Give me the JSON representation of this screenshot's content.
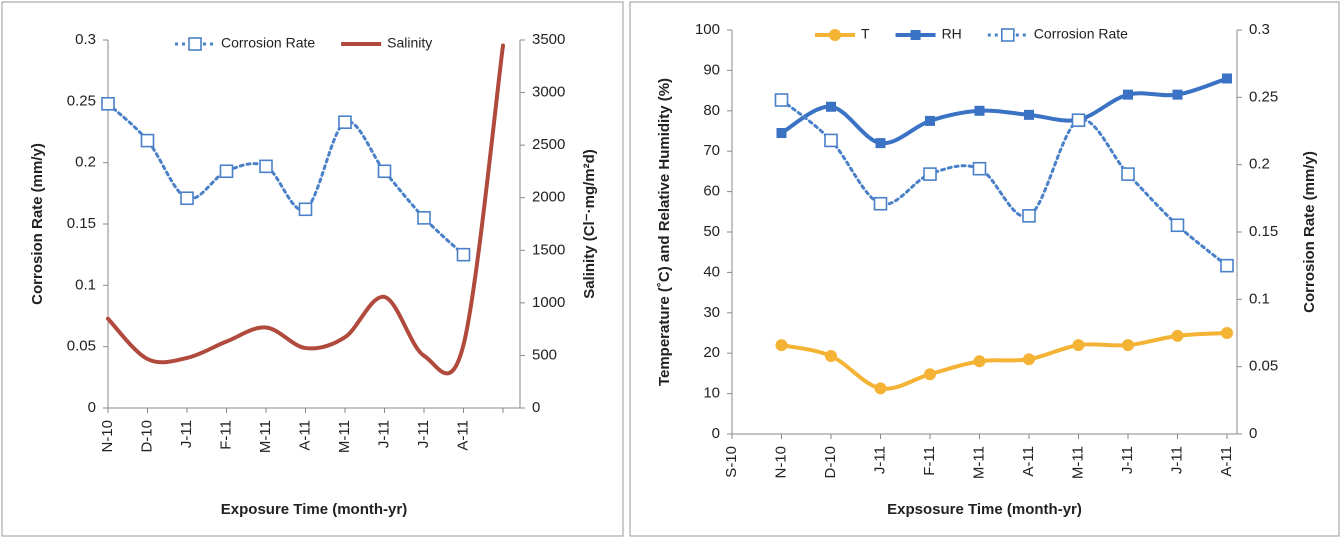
{
  "chart_data": [
    {
      "type": "line",
      "smooth": true,
      "categories": [
        "N-10",
        "D-10",
        "J-11",
        "F-11",
        "M-11",
        "A-11",
        "M-11",
        "J-11",
        "J-11",
        "A-11",
        null
      ],
      "series": [
        {
          "name": "Corrosion Rate",
          "color": "#4a80c8",
          "dash": "dotted",
          "marker": "square",
          "values": [
            0.248,
            0.218,
            0.171,
            0.193,
            0.197,
            0.162,
            0.233,
            0.193,
            0.155,
            0.125,
            null
          ]
        },
        {
          "name": "Salinity",
          "color": "#b04a3c",
          "dash": "solid",
          "marker": "none",
          "axis": "y2",
          "values": [
            849,
            466,
            476,
            632,
            766,
            570,
            673,
            1056,
            497,
            600,
            3448
          ]
        }
      ],
      "ylim": [
        0,
        0.3
      ],
      "yticks": [
        0,
        0.05,
        0.1,
        0.15,
        0.2,
        0.25,
        0.3
      ],
      "y2lim": [
        0,
        3500
      ],
      "y2ticks": [
        0,
        500,
        1000,
        1500,
        2000,
        2500,
        3000,
        3500
      ],
      "ylabel": "Corrosion Rate (mm/y)",
      "y2label": "Salinity (Cl⁻·mg/m²d)",
      "xlabel": "Exposure Time (month-yr)",
      "legend": "top"
    },
    {
      "type": "line",
      "smooth": true,
      "categories": [
        "S-10",
        "N-10",
        "D-10",
        "J-11",
        "F-11",
        "M-11",
        "A-11",
        "M-11",
        "J-11",
        "J-11",
        "A-11"
      ],
      "series": [
        {
          "name": "T",
          "color": "#f5b335",
          "dash": "solid",
          "marker": "circle",
          "values": [
            null,
            22,
            19.3,
            11.3,
            14.8,
            18,
            18.5,
            22,
            22,
            24.3,
            25
          ]
        },
        {
          "name": "RH",
          "color": "#3a72c4",
          "dash": "solid",
          "marker": "filled-square",
          "values": [
            null,
            74.5,
            81,
            72,
            77.5,
            80,
            79,
            77.8,
            84,
            84,
            88
          ]
        },
        {
          "name": "Corrosion Rate",
          "color": "#4a80c8",
          "dash": "dotted",
          "marker": "square",
          "axis": "y2",
          "values": [
            null,
            0.248,
            0.218,
            0.171,
            0.193,
            0.197,
            0.162,
            0.233,
            0.193,
            0.155,
            0.125
          ]
        }
      ],
      "ylim": [
        0,
        100
      ],
      "yticks": [
        0,
        10,
        20,
        30,
        40,
        50,
        60,
        70,
        80,
        90,
        100
      ],
      "y2lim": [
        0,
        0.3
      ],
      "y2ticks": [
        0,
        0.05,
        0.1,
        0.15,
        0.2,
        0.25,
        0.3
      ],
      "ylabel": "Temperature (˚C) and Relative Humidity (%)",
      "y2label": "Corrosion Rate (mm/y)",
      "xlabel": "Expsosure Time (month-yr)",
      "legend": "top"
    }
  ]
}
